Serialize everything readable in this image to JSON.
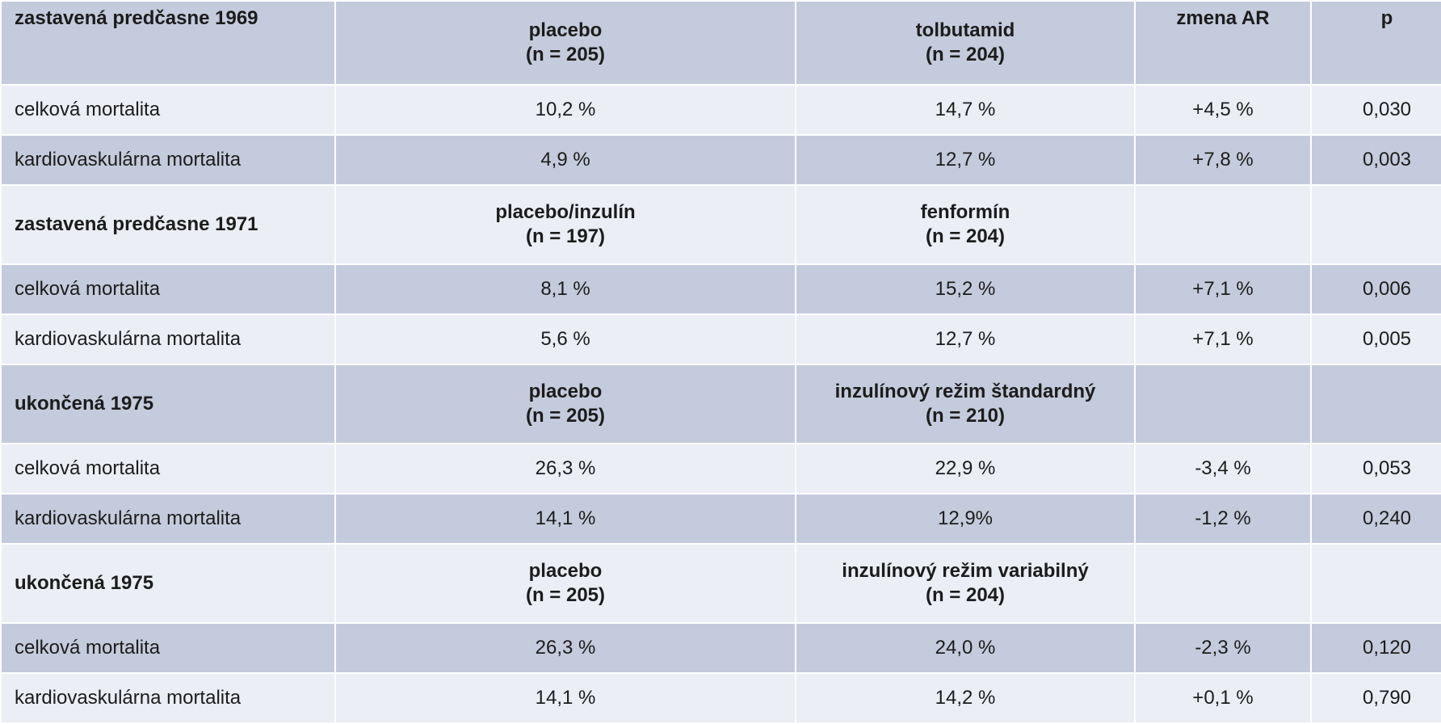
{
  "sections": [
    {
      "title": "zastavená predčasne 1969",
      "group_a": {
        "name": "placebo",
        "n": "(n = 205)"
      },
      "group_b": {
        "name": "tolbutamid",
        "n": "(n = 204)"
      },
      "col_ar": "zmena AR",
      "col_p": "p",
      "rows": [
        {
          "label": "celková mortalita",
          "a": "10,2 %",
          "b": "14,7 %",
          "ar": "+4,5 %",
          "p": "0,030"
        },
        {
          "label": "kardiovaskulárna mortalita",
          "a": "4,9 %",
          "b": "12,7 %",
          "ar": "+7,8 %",
          "p": "0,003"
        }
      ]
    },
    {
      "title": "zastavená predčasne 1971",
      "group_a": {
        "name": "placebo/inzulín",
        "n": "(n = 197)"
      },
      "group_b": {
        "name": "fenformín",
        "n": "(n = 204)"
      },
      "col_ar": "",
      "col_p": "",
      "rows": [
        {
          "label": "celková mortalita",
          "a": "8,1 %",
          "b": "15,2 %",
          "ar": "+7,1 %",
          "p": "0,006"
        },
        {
          "label": "kardiovaskulárna mortalita",
          "a": "5,6 %",
          "b": "12,7 %",
          "ar": "+7,1 %",
          "p": "0,005"
        }
      ]
    },
    {
      "title": "ukončená 1975",
      "group_a": {
        "name": "placebo",
        "n": "(n = 205)"
      },
      "group_b": {
        "name": "inzulínový režim štandardný",
        "n": "(n = 210)"
      },
      "col_ar": "",
      "col_p": "",
      "rows": [
        {
          "label": "celková mortalita",
          "a": "26,3 %",
          "b": "22,9 %",
          "ar": "-3,4 %",
          "p": "0,053"
        },
        {
          "label": "kardiovaskulárna mortalita",
          "a": "14,1 %",
          "b": "12,9%",
          "ar": "-1,2 %",
          "p": "0,240"
        }
      ]
    },
    {
      "title": "ukončená 1975",
      "group_a": {
        "name": "placebo",
        "n": "(n = 205)"
      },
      "group_b": {
        "name": "inzulínový režim variabilný",
        "n": "(n = 204)"
      },
      "col_ar": "",
      "col_p": "",
      "rows": [
        {
          "label": "celková mortalita",
          "a": "26,3 %",
          "b": "24,0 %",
          "ar": "-2,3 %",
          "p": "0,120"
        },
        {
          "label": "kardiovaskulárna mortalita",
          "a": "14,1 %",
          "b": "14,2 %",
          "ar": "+0,1 %",
          "p": "0,790"
        }
      ]
    }
  ],
  "colors": {
    "dark_row": "#c4cbdc",
    "light_row": "#ebeef5",
    "text": "#1c1c1c"
  }
}
